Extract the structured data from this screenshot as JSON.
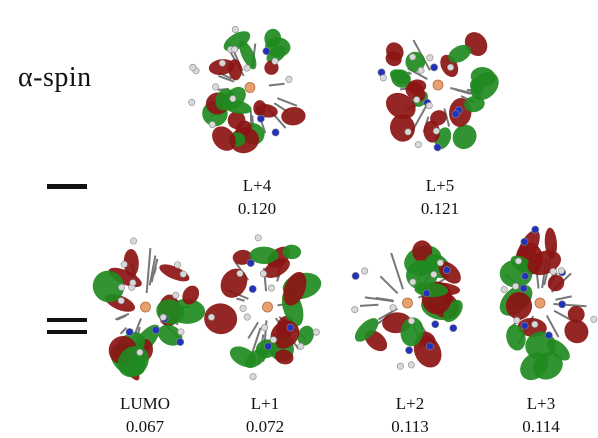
{
  "spin_label": "α-spin",
  "orbitals": [
    {
      "label": "L+4",
      "energy": "0.120"
    },
    {
      "label": "L+5",
      "energy": "0.121"
    },
    {
      "label": "LUMO",
      "energy": "0.067"
    },
    {
      "label": "L+1",
      "energy": "0.072"
    },
    {
      "label": "L+2",
      "energy": "0.113"
    },
    {
      "label": "L+3",
      "energy": "0.114"
    }
  ],
  "colors": {
    "lobe_red": "#8b1414",
    "lobe_green": "#1f8a1f",
    "atom_white": "#d9d9d9",
    "atom_blue": "#2233bb",
    "atom_metal": "#e8a070"
  }
}
